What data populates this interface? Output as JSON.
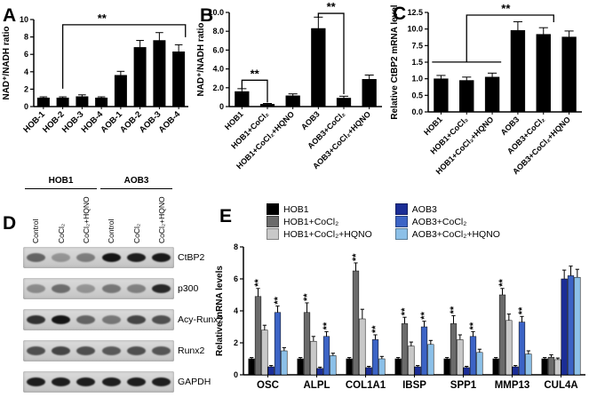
{
  "letters": [
    "A",
    "B",
    "C",
    "D",
    "E"
  ],
  "chart_data": [
    {
      "id": "panel-a",
      "type": "bar",
      "ylabel": "NAD⁺/NADH ratio",
      "categories": [
        "HOB-1",
        "HOB-2",
        "HOB-3",
        "HOB-4",
        "AOB-1",
        "AOB-2",
        "AOB-3",
        "AOB-4"
      ],
      "values": [
        1.0,
        1.0,
        1.15,
        1.0,
        3.6,
        6.8,
        7.6,
        6.3
      ],
      "errors": [
        0.12,
        0.12,
        0.2,
        0.12,
        0.45,
        0.8,
        0.9,
        0.8
      ],
      "bar_color": "#000000",
      "bar_fill": 0.62,
      "ticks": [
        0,
        2,
        4,
        6,
        8,
        10
      ],
      "tick_labels": [
        "0",
        "2",
        "4",
        "6",
        "8",
        "10"
      ],
      "ylim": [
        0,
        10
      ],
      "cat_label_rotate": 45,
      "cat_font": 9.5,
      "annotations": [
        {
          "type": "bracket",
          "x1": 1,
          "x2": 7.35,
          "y": 9.4,
          "drop1": 72,
          "drop2": 14,
          "label": "**",
          "label_at": 0.32
        }
      ]
    },
    {
      "id": "panel-b",
      "type": "bar",
      "ylabel": "NAD⁺/NADH ratio",
      "categories": [
        "HOB1",
        "HOB1+CoCl₂",
        "HOB1+CoCl₂+HQNO",
        "AOB3",
        "AOB3+CoCl₂",
        "AOB3+CoCl₂+HQNO"
      ],
      "values": [
        1.6,
        0.25,
        1.15,
        8.3,
        0.9,
        2.9
      ],
      "errors": [
        0.3,
        0.08,
        0.2,
        1.2,
        0.2,
        0.45
      ],
      "bar_color": "#000000",
      "bar_fill": 0.55,
      "ticks": [
        0,
        2,
        4,
        6,
        8,
        10
      ],
      "tick_labels": [
        "0",
        "2.0",
        "4.0",
        "6.0",
        "8.0",
        "10.0"
      ],
      "ylim": [
        0,
        10
      ],
      "cat_label_rotate": 45,
      "cat_font": 9,
      "annotations": [
        {
          "type": "bracket",
          "x1": 0,
          "x2": 1,
          "y": 2.8,
          "drop1": 10,
          "drop2": 25,
          "label": "**",
          "label_at": 0.5
        },
        {
          "type": "bracket",
          "x1": 3,
          "x2": 4,
          "y": 9.9,
          "drop1": 5,
          "drop2": 91,
          "label": "**",
          "label_at": 0.5
        }
      ]
    },
    {
      "id": "panel-c",
      "type": "bar",
      "ylabel": "Relative CtBP2 mRNA level",
      "categories": [
        "HOB1",
        "HOB1+CoCl₂",
        "HOB1+CoCl₂+HQNO",
        "AOB3",
        "AOB3+CoCl₂",
        "AOB3+CoCl₂+HQNO"
      ],
      "values": [
        1.0,
        0.95,
        1.05,
        9.8,
        9.2,
        8.8
      ],
      "errors": [
        0.1,
        0.1,
        0.12,
        1.3,
        1.0,
        0.9
      ],
      "bar_color": "#000000",
      "bar_fill": 0.55,
      "ticks": [
        0,
        0.5,
        1.0,
        1.5,
        7.5,
        10.0,
        12.5
      ],
      "tick_labels": [
        "0.0",
        "0.5",
        "1.0",
        "1.5",
        "7.5",
        "10.0",
        "12.5"
      ],
      "ylim": [
        0,
        12.5
      ],
      "axis_note": "broken axis: 0-1.5 expanded, 1.5-7.5 compressed",
      "cat_label_rotate": 45,
      "cat_font": 9,
      "annotations": [
        {
          "type": "hline",
          "x1": -0.35,
          "x2": 2.35,
          "y": 1.55
        },
        {
          "type": "bracket",
          "x1": 1,
          "x2": 4.4,
          "y": 12.1,
          "drop1": 53,
          "drop2": 8,
          "label": "**",
          "label_at": 0.45
        }
      ]
    },
    {
      "id": "panel-e",
      "type": "grouped_bar",
      "ylabel": "Relative mRNA levels",
      "categories": [
        "OSC",
        "ALPL",
        "COL1A1",
        "IBSP",
        "SPP1",
        "MMP13",
        "CUL4A"
      ],
      "series": [
        {
          "name": "HOB1",
          "color": "#000000",
          "values": [
            1.0,
            1.0,
            1.0,
            1.0,
            1.0,
            1.0,
            1.0
          ],
          "errors": [
            0.08,
            0.08,
            0.08,
            0.08,
            0.08,
            0.08,
            0.08
          ]
        },
        {
          "name": "HOB1+CoCl₂",
          "color": "#6b6b6b",
          "values": [
            4.9,
            3.9,
            6.5,
            3.2,
            3.2,
            5.0,
            1.1
          ],
          "errors": [
            0.5,
            0.6,
            0.5,
            0.4,
            0.5,
            0.4,
            0.15
          ]
        },
        {
          "name": "HOB1+CoCl₂+HQNO",
          "color": "#c8c8c8",
          "values": [
            2.8,
            2.1,
            3.5,
            1.8,
            2.2,
            3.4,
            0.95
          ],
          "errors": [
            0.3,
            0.3,
            0.6,
            0.25,
            0.3,
            0.4,
            0.1
          ]
        },
        {
          "name": "AOB3",
          "color": "#1b2d96",
          "values": [
            0.5,
            0.4,
            0.45,
            0.5,
            0.45,
            0.5,
            6.0
          ],
          "errors": [
            0.08,
            0.08,
            0.08,
            0.08,
            0.08,
            0.08,
            0.55
          ]
        },
        {
          "name": "AOB3+CoCl₂",
          "color": "#3c64c6",
          "values": [
            3.9,
            2.4,
            2.2,
            3.0,
            2.4,
            3.3,
            6.2
          ],
          "errors": [
            0.4,
            0.3,
            0.3,
            0.35,
            0.3,
            0.35,
            0.6
          ]
        },
        {
          "name": "AOB3+CoCl₂+HQNO",
          "color": "#8cc0e8",
          "values": [
            1.5,
            1.2,
            1.0,
            1.9,
            1.4,
            1.3,
            6.1
          ],
          "errors": [
            0.2,
            0.15,
            0.15,
            0.25,
            0.2,
            0.2,
            0.5
          ]
        }
      ],
      "ticks": [
        0,
        2,
        4,
        6,
        8
      ],
      "tick_labels": [
        "0",
        "2",
        "4",
        "6",
        "8"
      ],
      "ylim": [
        0,
        8
      ],
      "group_fill": 0.8,
      "cat_label_rotate": 0,
      "cat_font": 11.5,
      "sig": [
        {
          "cat": 0,
          "series": 1,
          "label": "**"
        },
        {
          "cat": 0,
          "series": 4,
          "label": "**"
        },
        {
          "cat": 1,
          "series": 1,
          "label": "**"
        },
        {
          "cat": 1,
          "series": 4,
          "label": "**"
        },
        {
          "cat": 2,
          "series": 1,
          "label": "**"
        },
        {
          "cat": 2,
          "series": 4,
          "label": "**"
        },
        {
          "cat": 3,
          "series": 1,
          "label": "**"
        },
        {
          "cat": 3,
          "series": 4,
          "label": "**"
        },
        {
          "cat": 4,
          "series": 1,
          "label": "**"
        },
        {
          "cat": 4,
          "series": 4,
          "label": "**"
        },
        {
          "cat": 5,
          "series": 1,
          "label": "**"
        },
        {
          "cat": 5,
          "series": 4,
          "label": "**"
        }
      ]
    }
  ],
  "blot_panel": {
    "group_labels": [
      "HOB1",
      "AOB3"
    ],
    "lane_labels": [
      "Control",
      "CoCl₂",
      "CoCl₂+HQNO",
      "Control",
      "CoCl₂",
      "CoCl₂+HQNO"
    ],
    "rows": [
      {
        "label": "CtBP2",
        "bands": [
          0.55,
          0.3,
          0.42,
          0.95,
          0.9,
          0.92
        ]
      },
      {
        "label": "p300",
        "bands": [
          0.35,
          0.5,
          0.3,
          0.45,
          0.4,
          0.85
        ]
      },
      {
        "label": "Acy-Runx2",
        "bands": [
          0.8,
          0.95,
          0.55,
          0.45,
          0.7,
          0.65
        ]
      },
      {
        "label": "Runx2",
        "bands": [
          0.65,
          0.7,
          0.65,
          0.6,
          0.65,
          0.62
        ]
      },
      {
        "label": "GAPDH",
        "bands": [
          0.9,
          0.9,
          0.9,
          0.9,
          0.9,
          0.9
        ]
      }
    ]
  },
  "legend": {
    "columns": [
      [
        0,
        1,
        2
      ],
      [
        3,
        4,
        5
      ]
    ],
    "source_chart": 3
  }
}
